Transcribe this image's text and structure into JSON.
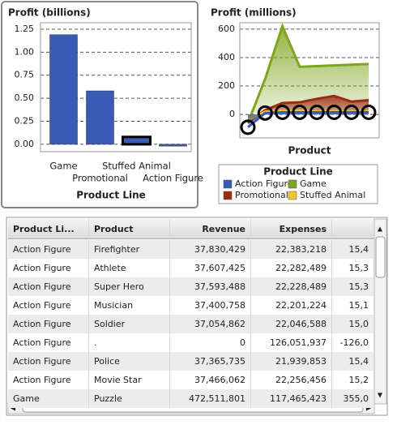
{
  "chart_data": [
    {
      "type": "bar",
      "title": "Profit (billions)",
      "x_label": "Product Line",
      "categories": [
        "Game",
        "Promotional",
        "Stuffed Animal",
        "Action Figure"
      ],
      "values": [
        1.19,
        0.58,
        0.08,
        -0.02
      ],
      "color": "#3a5bb5",
      "ylim": [
        -0.08,
        1.32
      ],
      "yticks": [
        {
          "value": 0,
          "label": "0.00"
        },
        0.25,
        {
          "value": 0.5,
          "label": "0.50"
        },
        0.75,
        {
          "value": 1,
          "label": "1.00"
        },
        1.25
      ],
      "grid": true
    },
    {
      "type": "area",
      "title": "Profit (millions)",
      "x_label": "Product",
      "categories": [
        null,
        null,
        null,
        null,
        null,
        null,
        null,
        null
      ],
      "series": [
        {
          "name": "Action Figure",
          "color": "#3a5bb5",
          "values": [
            -90,
            10,
            15,
            15,
            15,
            15,
            15,
            15
          ]
        },
        {
          "name": "Game",
          "color": "#7fa51e",
          "values": [
            -60,
            250,
            620,
            335,
            340,
            345,
            350,
            355
          ]
        },
        {
          "name": "Promotional",
          "color": "#9c2a14",
          "values": [
            -60,
            30,
            80,
            85,
            110,
            130,
            90,
            100
          ]
        },
        {
          "name": "Stuffed Animal",
          "color": "#f4c430",
          "values": [
            -40,
            20,
            25,
            25,
            20,
            22,
            20,
            20
          ]
        }
      ],
      "legend_title": "Product Line",
      "ylim": [
        -165,
        645
      ],
      "yticks": [
        0,
        200,
        400,
        600
      ],
      "grid": true
    }
  ],
  "table": {
    "columns": [
      "Product Li...",
      "Product",
      "Revenue",
      "Expenses"
    ],
    "rows": [
      [
        "Action Figure",
        "Firefighter",
        "37,830,429",
        "22,383,218",
        "15,4"
      ],
      [
        "Action Figure",
        "Athlete",
        "37,607,425",
        "22,282,489",
        "15,3"
      ],
      [
        "Action Figure",
        "Super Hero",
        "37,593,488",
        "22,228,489",
        "15,3"
      ],
      [
        "Action Figure",
        "Musician",
        "37,400,758",
        "22,201,224",
        "15,1"
      ],
      [
        "Action Figure",
        "Soldier",
        "37,054,862",
        "22,046,588",
        "15,0"
      ],
      [
        "Action Figure",
        ".",
        "0",
        "126,051,937",
        "-126,0"
      ],
      [
        "Action Figure",
        "Police",
        "37,365,735",
        "21,939,853",
        "15,4"
      ],
      [
        "Action Figure",
        "Movie Star",
        "37,466,062",
        "22,256,456",
        "15,2"
      ],
      [
        "Game",
        "Puzzle",
        "472,511,801",
        "117,465,423",
        "355,0"
      ]
    ]
  }
}
